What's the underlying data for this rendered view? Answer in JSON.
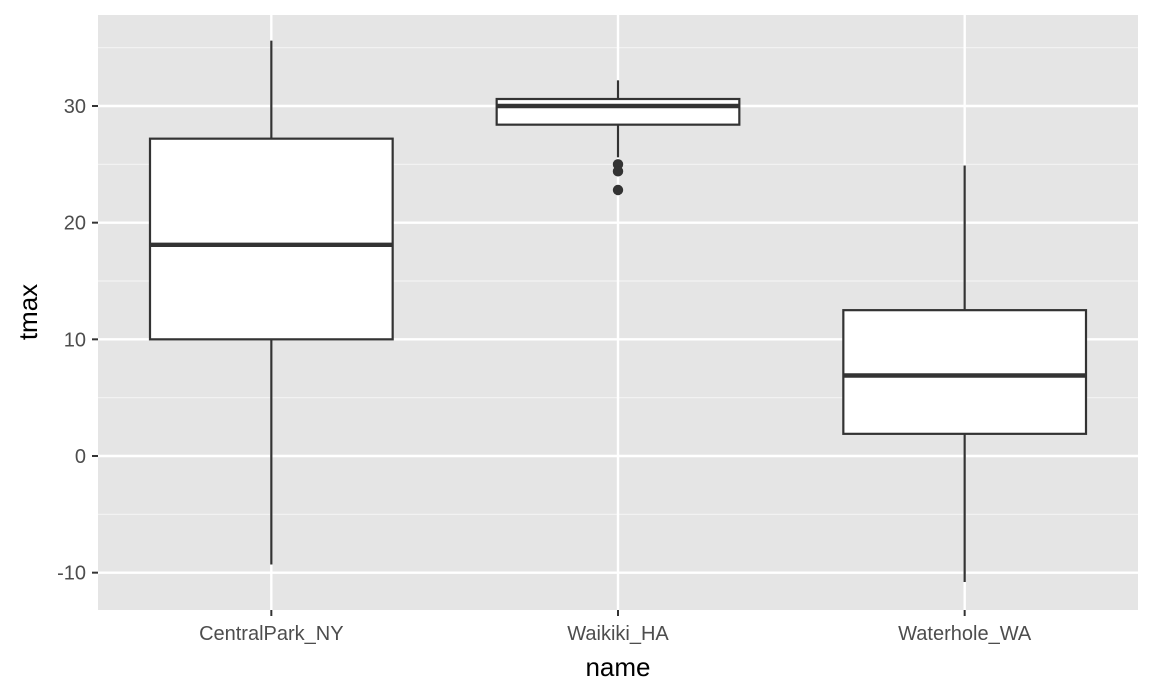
{
  "chart_data": {
    "type": "boxplot",
    "title": "",
    "xlabel": "name",
    "ylabel": "tmax",
    "ylim": [
      -13.2,
      37.8
    ],
    "yticks": [
      -10,
      0,
      10,
      20,
      30
    ],
    "y_minor_ticks": [
      -5,
      5,
      15,
      25,
      35
    ],
    "grid": true,
    "categories": [
      "CentralPark_NY",
      "Waikiki_HA",
      "Waterhole_WA"
    ],
    "boxes": [
      {
        "category": "CentralPark_NY",
        "whisker_low": -9.3,
        "q1": 10.0,
        "median": 18.1,
        "q3": 27.2,
        "whisker_high": 35.6,
        "outliers": []
      },
      {
        "category": "Waikiki_HA",
        "whisker_low": 25.6,
        "q1": 28.4,
        "median": 30.0,
        "q3": 30.6,
        "whisker_high": 32.2,
        "outliers": [
          25.0,
          24.4,
          22.8
        ]
      },
      {
        "category": "Waterhole_WA",
        "whisker_low": -10.8,
        "q1": 1.9,
        "median": 6.9,
        "q3": 12.5,
        "whisker_high": 24.9,
        "outliers": []
      }
    ],
    "colors": {
      "panel_background": "#e5e5e5",
      "grid_major": "#ffffff",
      "box_fill": "#ffffff",
      "box_line": "#333333"
    }
  }
}
